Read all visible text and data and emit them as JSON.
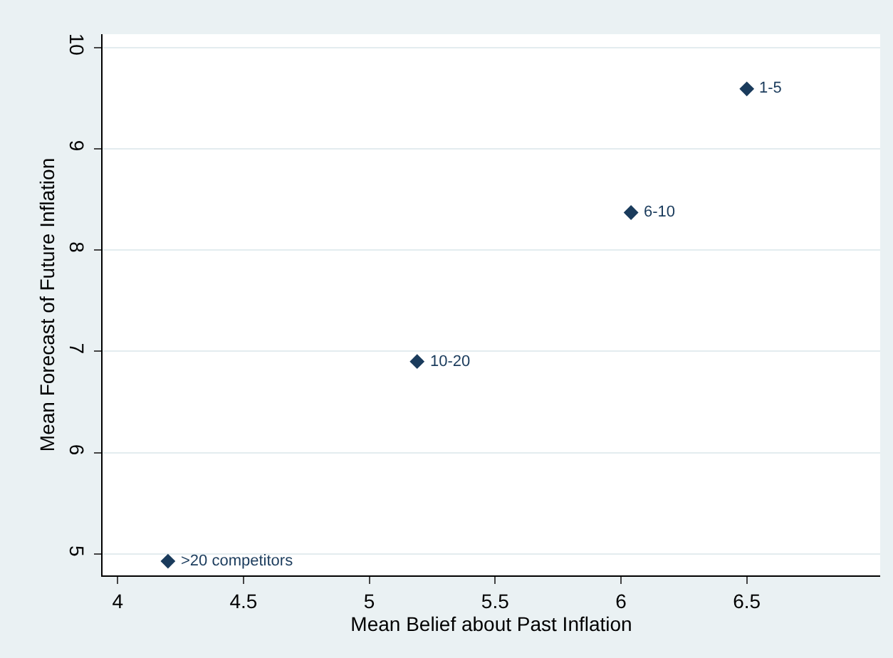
{
  "chart_data": {
    "type": "scatter",
    "xlabel": "Mean Belief about Past Inflation",
    "ylabel": "Mean Forecast of Future Inflation",
    "x": [
      6.5,
      6.04,
      5.19,
      4.2
    ],
    "values": [
      9.59,
      8.37,
      6.9,
      4.93
    ],
    "color": "#1a3b5c",
    "marker": "diamond",
    "annotations": [
      {
        "text": "1-5",
        "x": 6.5,
        "y": 9.59
      },
      {
        "text": "6-10",
        "x": 6.04,
        "y": 8.37
      },
      {
        "text": "10-20",
        "x": 5.19,
        "y": 6.9
      },
      {
        "text": ">20 competitors",
        "x": 4.2,
        "y": 4.93
      }
    ],
    "xlim": [
      3.94,
      7.03
    ],
    "xticks": [
      4,
      4.5,
      5,
      5.5,
      6,
      6.5
    ],
    "ylim": [
      4.79,
      10.13
    ],
    "yticks": [
      5,
      6,
      7,
      8,
      9,
      10
    ],
    "grid": "y",
    "legend": false
  }
}
